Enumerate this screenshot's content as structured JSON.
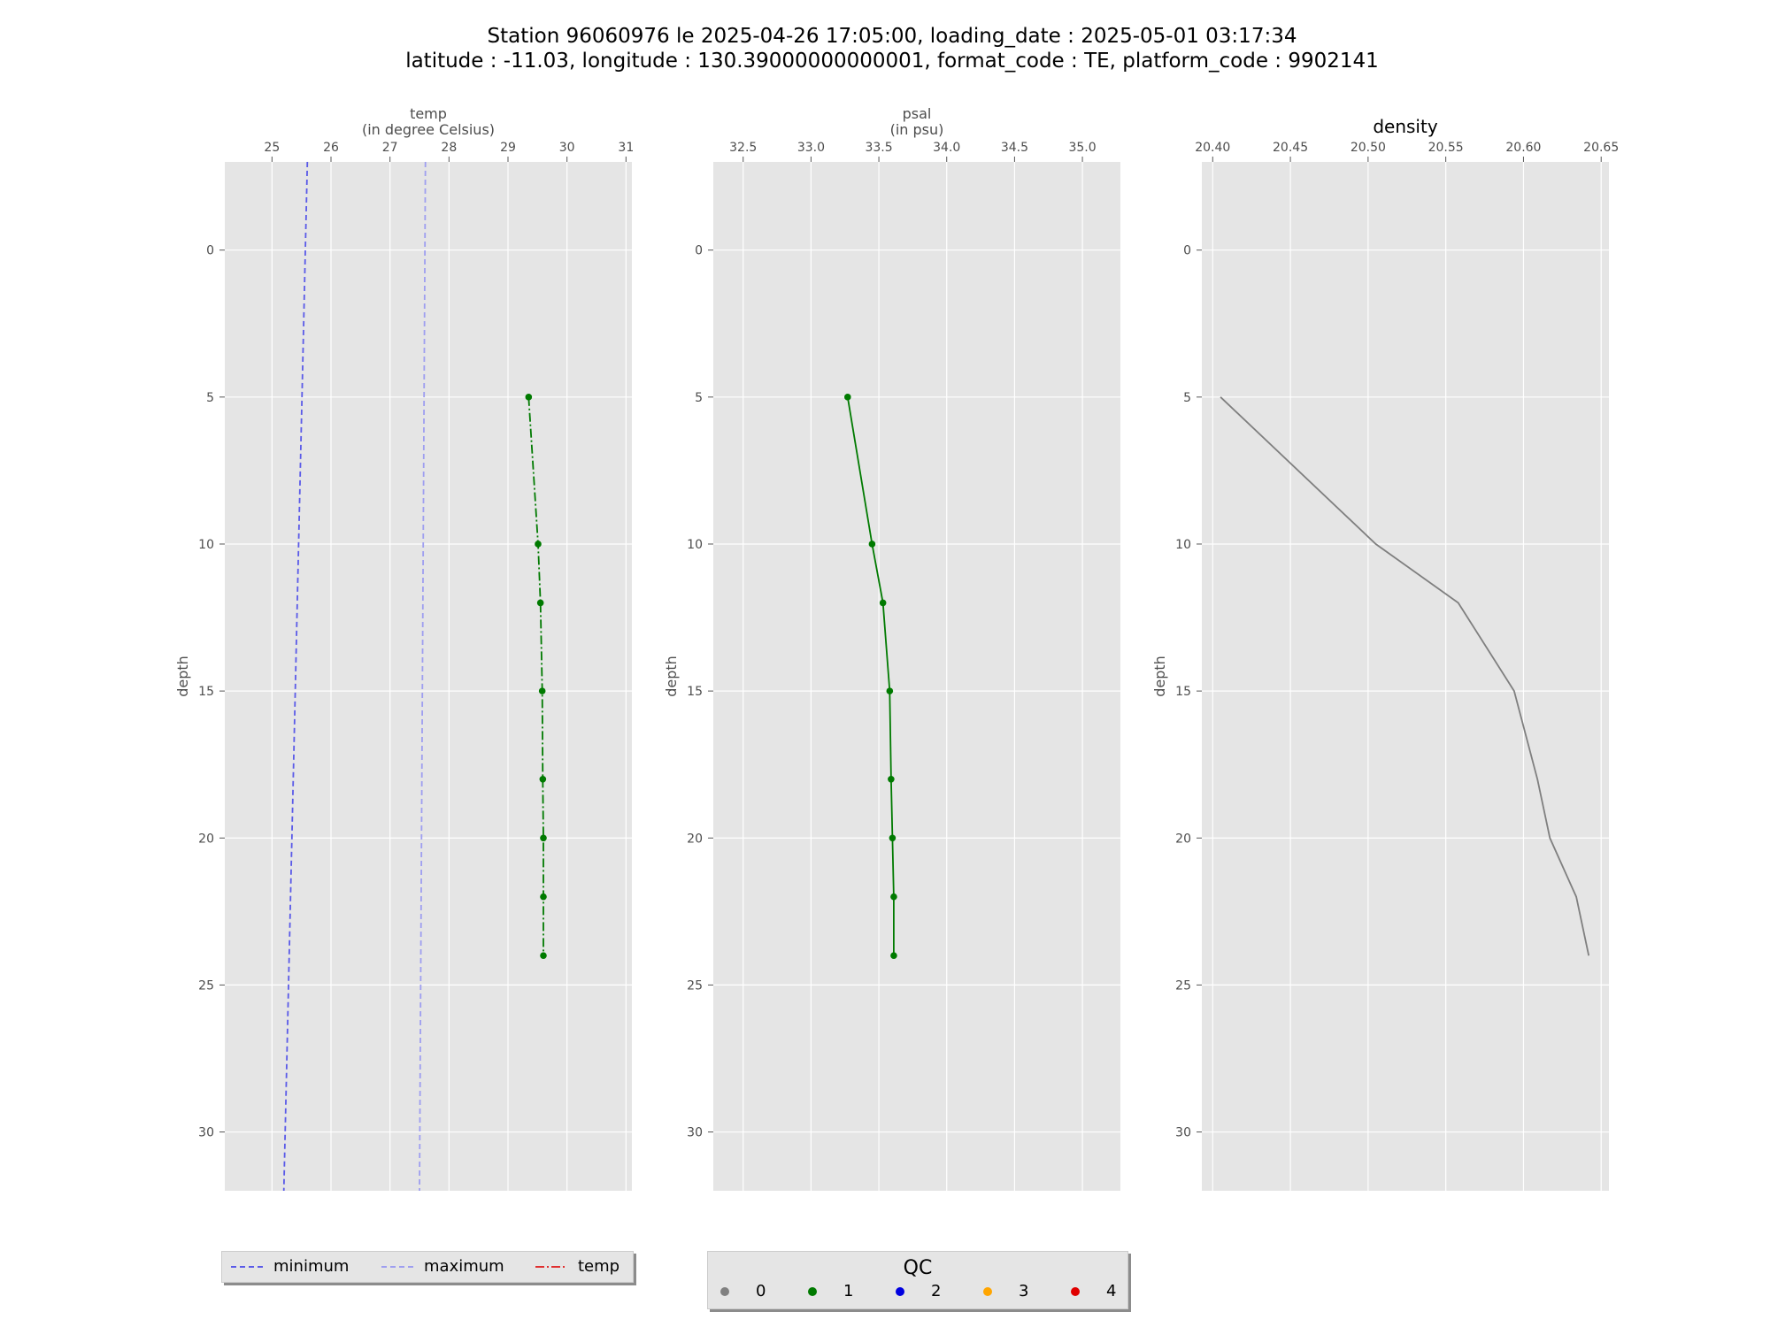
{
  "figure": {
    "title_line1": "Station 96060976 le 2025-04-26 17:05:00, loading_date : 2025-05-01 03:17:34",
    "title_line2": "latitude : -11.03, longitude : 130.39000000000001, format_code : TE, platform_code : 9902141",
    "ylabel": "depth"
  },
  "chart_data": [
    {
      "type": "line",
      "title": "temp",
      "subtitle": "(in degree Celsius)",
      "ylabel": "depth",
      "xlim": [
        24.2,
        31.1
      ],
      "xticks": [
        25,
        26,
        27,
        28,
        29,
        30,
        31
      ],
      "ylim": [
        32,
        -3
      ],
      "yticks": [
        0,
        5,
        10,
        15,
        20,
        25,
        30
      ],
      "y_inverted": true,
      "grid": true,
      "series": [
        {
          "name": "minimum",
          "style": "dashed",
          "color": "#5a5ae8",
          "x": [
            25.6,
            25.2
          ],
          "y": [
            -3,
            32
          ]
        },
        {
          "name": "maximum",
          "style": "dashed",
          "color": "#9e9ef0",
          "x": [
            27.6,
            27.5
          ],
          "y": [
            -3,
            32
          ]
        },
        {
          "name": "temp",
          "style": "dashdot",
          "color": "#007a00",
          "markers": true,
          "x": [
            29.35,
            29.51,
            29.55,
            29.58,
            29.59,
            29.6,
            29.6,
            29.6
          ],
          "y": [
            5,
            10,
            12,
            15,
            18,
            20,
            22,
            24
          ]
        }
      ],
      "legend": [
        "minimum",
        "maximum",
        "temp"
      ],
      "legend_colors": [
        "#5a5ae8",
        "#9e9ef0",
        "#e03030"
      ],
      "legend_placement": "below"
    },
    {
      "type": "line",
      "title": "psal",
      "subtitle": "(in psu)",
      "ylabel": "depth",
      "xlim": [
        32.28,
        35.28
      ],
      "xticks": [
        32.5,
        33.0,
        33.5,
        34.0,
        34.5,
        35.0
      ],
      "ylim": [
        32,
        -3
      ],
      "yticks": [
        0,
        5,
        10,
        15,
        20,
        25,
        30
      ],
      "y_inverted": true,
      "grid": true,
      "series": [
        {
          "style": "solid",
          "color": "#007a00",
          "markers": true,
          "x": [
            33.27,
            33.45,
            33.53,
            33.58,
            33.59,
            33.6,
            33.61,
            33.61
          ],
          "y": [
            5,
            10,
            12,
            15,
            18,
            20,
            22,
            24
          ]
        }
      ]
    },
    {
      "type": "line",
      "title": "density",
      "ylabel": "depth",
      "xlim": [
        20.393,
        20.655
      ],
      "xticks": [
        20.4,
        20.45,
        20.5,
        20.55,
        20.6,
        20.65
      ],
      "ylim": [
        32,
        -3
      ],
      "yticks": [
        0,
        5,
        10,
        15,
        20,
        25,
        30
      ],
      "y_inverted": true,
      "grid": true,
      "series": [
        {
          "style": "solid",
          "color": "#7f7f7f",
          "markers": false,
          "x": [
            20.405,
            20.505,
            20.558,
            20.594,
            20.609,
            20.617,
            20.634,
            20.642
          ],
          "y": [
            5,
            10,
            12,
            15,
            18,
            20,
            22,
            24
          ]
        }
      ]
    }
  ],
  "qc_legend": {
    "title": "QC",
    "entries": [
      {
        "label": "0",
        "color": "#808080"
      },
      {
        "label": "1",
        "color": "#007a00"
      },
      {
        "label": "2",
        "color": "#0000e0"
      },
      {
        "label": "3",
        "color": "#ffa500"
      },
      {
        "label": "4",
        "color": "#e00000"
      }
    ]
  }
}
